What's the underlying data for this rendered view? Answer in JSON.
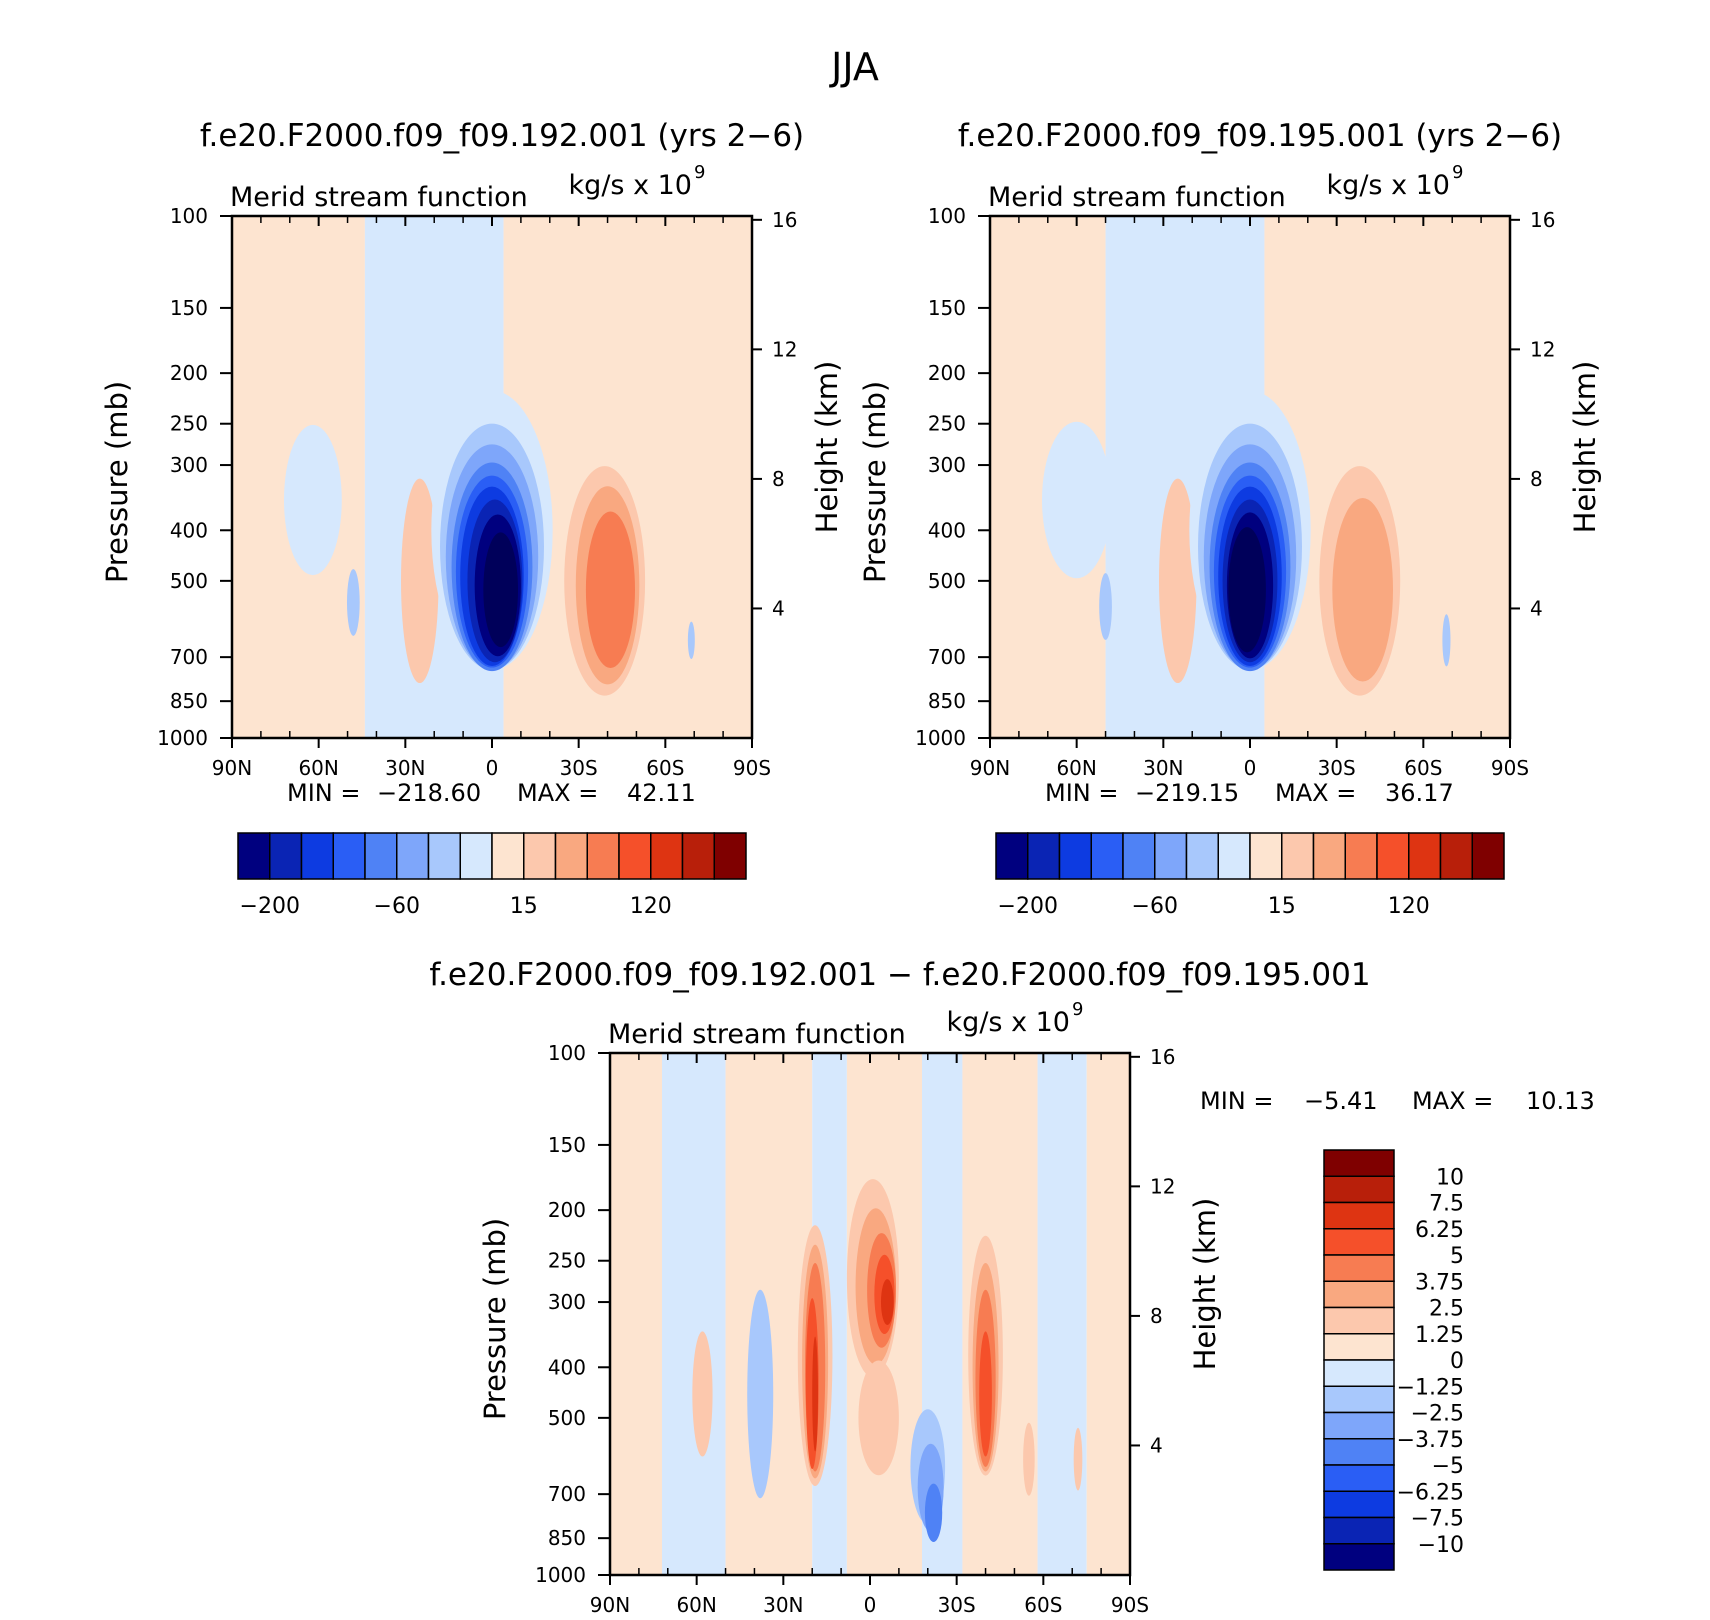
{
  "figure": {
    "title": "JJA"
  },
  "chart_data": [
    {
      "type": "contour",
      "title": "f.e20.F2000.f09_f09.192.001 (yrs 2−6)",
      "left_title": "Merid stream function",
      "right_title": "kg/s x 10",
      "right_title_exp": "9",
      "ylabel": "Pressure (mb)",
      "ylabel_right": "Height (km)",
      "x_ticks": [
        "90N",
        "60N",
        "30N",
        "0",
        "30S",
        "60S",
        "90S"
      ],
      "y_ticks": [
        "100",
        "150",
        "200",
        "250",
        "300",
        "400",
        "500",
        "700",
        "850",
        "1000"
      ],
      "y_right_ticks": [
        "16",
        "12",
        "8",
        "4"
      ],
      "stats": {
        "min_label": "MIN =",
        "min": "−218.60",
        "max_label": "MAX =",
        "max": "42.11"
      },
      "colorbar": {
        "orientation": "horizontal",
        "labels": [
          "−200",
          "−60",
          "15",
          "120"
        ],
        "colors": [
          "#00007f",
          "#0a24b4",
          "#0d3be1",
          "#2a5ef5",
          "#4f82f5",
          "#7ea6fa",
          "#a8c8fc",
          "#d6e8fd",
          "#fde4d0",
          "#fcc8ad",
          "#f9a880",
          "#f77c52",
          "#f5502a",
          "#de3412",
          "#b81f0a",
          "#7f0000"
        ]
      },
      "fields": {
        "stripes": [
          {
            "from": 0,
            "to": 46,
            "level": "pos1"
          },
          {
            "from": 46,
            "to": 94,
            "level": "neg1"
          },
          {
            "from": 94,
            "to": 180,
            "level": "pos1"
          }
        ],
        "blobs": [
          {
            "lat": 62,
            "plev": 350,
            "w": 10,
            "h": 0.72,
            "level": "neg1"
          },
          {
            "lat": 48,
            "plev": 550,
            "w": 2.2,
            "h": 0.32,
            "level": "neg2"
          },
          {
            "lat": 25,
            "plev": 500,
            "w": 6.5,
            "h": 0.98,
            "level": "pos2"
          },
          {
            "lat": 0,
            "plev": 400,
            "w": 21,
            "h": 1.34,
            "level": "neg1"
          },
          {
            "lat": 0,
            "plev": 430,
            "w": 18,
            "h": 1.18,
            "level": "neg2"
          },
          {
            "lat": 0,
            "plev": 450,
            "w": 16,
            "h": 1.08,
            "level": "neg3"
          },
          {
            "lat": 0,
            "plev": 470,
            "w": 14,
            "h": 1.0,
            "level": "neg4"
          },
          {
            "lat": 0,
            "plev": 480,
            "w": 12.5,
            "h": 0.92,
            "level": "neg5"
          },
          {
            "lat": 0,
            "plev": 490,
            "w": 11,
            "h": 0.86,
            "level": "neg6"
          },
          {
            "lat": -1,
            "plev": 500,
            "w": 9.5,
            "h": 0.78,
            "level": "neg7"
          },
          {
            "lat": -2,
            "plev": 510,
            "w": 8,
            "h": 0.68,
            "level": "neg8"
          },
          {
            "lat": -3,
            "plev": 520,
            "w": 6,
            "h": 0.55,
            "level": "neg9"
          },
          {
            "lat": -39,
            "plev": 500,
            "w": 14,
            "h": 1.1,
            "level": "pos2"
          },
          {
            "lat": -40,
            "plev": 510,
            "w": 11,
            "h": 0.95,
            "level": "pos3"
          },
          {
            "lat": -41,
            "plev": 520,
            "w": 8.5,
            "h": 0.75,
            "level": "pos4"
          },
          {
            "lat": -69,
            "plev": 650,
            "w": 1.2,
            "h": 0.18,
            "level": "neg2"
          }
        ]
      }
    },
    {
      "type": "contour",
      "title": "f.e20.F2000.f09_f09.195.001 (yrs 2−6)",
      "left_title": "Merid stream function",
      "right_title": "kg/s x 10",
      "right_title_exp": "9",
      "ylabel": "Pressure (mb)",
      "ylabel_right": "Height (km)",
      "x_ticks": [
        "90N",
        "60N",
        "30N",
        "0",
        "30S",
        "60S",
        "90S"
      ],
      "y_ticks": [
        "100",
        "150",
        "200",
        "250",
        "300",
        "400",
        "500",
        "700",
        "850",
        "1000"
      ],
      "y_right_ticks": [
        "16",
        "12",
        "8",
        "4"
      ],
      "stats": {
        "min_label": "MIN =",
        "min": "−219.15",
        "max_label": "MAX =",
        "max": "36.17"
      },
      "colorbar": {
        "orientation": "horizontal",
        "labels": [
          "−200",
          "−60",
          "15",
          "120"
        ],
        "colors": [
          "#00007f",
          "#0a24b4",
          "#0d3be1",
          "#2a5ef5",
          "#4f82f5",
          "#7ea6fa",
          "#a8c8fc",
          "#d6e8fd",
          "#fde4d0",
          "#fcc8ad",
          "#f9a880",
          "#f77c52",
          "#f5502a",
          "#de3412",
          "#b81f0a",
          "#7f0000"
        ]
      },
      "fields": {
        "stripes": [
          {
            "from": 0,
            "to": 40,
            "level": "pos1"
          },
          {
            "from": 40,
            "to": 95,
            "level": "neg1"
          },
          {
            "from": 95,
            "to": 180,
            "level": "pos1"
          }
        ],
        "blobs": [
          {
            "lat": 60,
            "plev": 350,
            "w": 12,
            "h": 0.75,
            "level": "neg1"
          },
          {
            "lat": 50,
            "plev": 560,
            "w": 2.2,
            "h": 0.32,
            "level": "neg2"
          },
          {
            "lat": 25,
            "plev": 500,
            "w": 6.5,
            "h": 0.98,
            "level": "pos2"
          },
          {
            "lat": 0,
            "plev": 400,
            "w": 21,
            "h": 1.34,
            "level": "neg1"
          },
          {
            "lat": 0,
            "plev": 430,
            "w": 18,
            "h": 1.18,
            "level": "neg2"
          },
          {
            "lat": 0,
            "plev": 450,
            "w": 16,
            "h": 1.08,
            "level": "neg3"
          },
          {
            "lat": 0,
            "plev": 470,
            "w": 14,
            "h": 1.0,
            "level": "neg4"
          },
          {
            "lat": 0,
            "plev": 480,
            "w": 12.5,
            "h": 0.92,
            "level": "neg5"
          },
          {
            "lat": 0,
            "plev": 490,
            "w": 11,
            "h": 0.86,
            "level": "neg6"
          },
          {
            "lat": 0,
            "plev": 500,
            "w": 9.5,
            "h": 0.78,
            "level": "neg7"
          },
          {
            "lat": 0,
            "plev": 510,
            "w": 8,
            "h": 0.7,
            "level": "neg8"
          },
          {
            "lat": 1,
            "plev": 520,
            "w": 6.5,
            "h": 0.6,
            "level": "neg9"
          },
          {
            "lat": -38,
            "plev": 500,
            "w": 14,
            "h": 1.1,
            "level": "pos2"
          },
          {
            "lat": -39,
            "plev": 520,
            "w": 10.5,
            "h": 0.88,
            "level": "pos3"
          },
          {
            "lat": -68,
            "plev": 650,
            "w": 1.4,
            "h": 0.25,
            "level": "neg2"
          }
        ]
      }
    },
    {
      "type": "contour",
      "title": "f.e20.F2000.f09_f09.192.001 − f.e20.F2000.f09_f09.195.001",
      "left_title": "Merid stream function",
      "right_title": "kg/s x 10",
      "right_title_exp": "9",
      "ylabel": "Pressure (mb)",
      "ylabel_right": "Height (km)",
      "x_ticks": [
        "90N",
        "60N",
        "30N",
        "0",
        "30S",
        "60S",
        "90S"
      ],
      "y_ticks": [
        "100",
        "150",
        "200",
        "250",
        "300",
        "400",
        "500",
        "700",
        "850",
        "1000"
      ],
      "y_right_ticks": [
        "16",
        "12",
        "8",
        "4"
      ],
      "stats": {
        "min_label": "MIN =",
        "min": "−5.41",
        "max_label": "MAX =",
        "max": "10.13"
      },
      "colorbar": {
        "orientation": "vertical",
        "labels": [
          "10",
          "7.5",
          "6.25",
          "5",
          "3.75",
          "2.5",
          "1.25",
          "0",
          "−1.25",
          "−2.5",
          "−3.75",
          "−5",
          "−6.25",
          "−7.5",
          "−10"
        ],
        "colors": [
          "#00007f",
          "#0a24b4",
          "#0d3be1",
          "#2a5ef5",
          "#4f82f5",
          "#7ea6fa",
          "#a8c8fc",
          "#d6e8fd",
          "#fde4d0",
          "#fcc8ad",
          "#f9a880",
          "#f77c52",
          "#f5502a",
          "#de3412",
          "#b81f0a",
          "#7f0000"
        ]
      },
      "fields": {
        "stripes": [
          {
            "from": 0,
            "to": 18,
            "level": "pos1"
          },
          {
            "from": 18,
            "to": 40,
            "level": "neg1"
          },
          {
            "from": 40,
            "to": 70,
            "level": "pos1"
          },
          {
            "from": 70,
            "to": 82,
            "level": "neg1"
          },
          {
            "from": 82,
            "to": 108,
            "level": "pos1"
          },
          {
            "from": 108,
            "to": 122,
            "level": "neg1"
          },
          {
            "from": 122,
            "to": 148,
            "level": "pos1"
          },
          {
            "from": 148,
            "to": 165,
            "level": "neg1"
          },
          {
            "from": 165,
            "to": 180,
            "level": "pos1"
          }
        ],
        "blobs": [
          {
            "lat": 58,
            "plev": 450,
            "w": 3.5,
            "h": 0.6,
            "level": "pos2"
          },
          {
            "lat": 38,
            "plev": 450,
            "w": 4.5,
            "h": 1.0,
            "level": "neg2"
          },
          {
            "lat": 19,
            "plev": 380,
            "w": 6,
            "h": 1.25,
            "level": "pos2"
          },
          {
            "lat": 19,
            "plev": 390,
            "w": 4.5,
            "h": 1.12,
            "level": "pos3"
          },
          {
            "lat": 19,
            "plev": 400,
            "w": 3.5,
            "h": 1.0,
            "level": "pos4"
          },
          {
            "lat": 20,
            "plev": 430,
            "w": 2.2,
            "h": 0.82,
            "level": "pos5"
          },
          {
            "lat": 19,
            "plev": 450,
            "w": 1.0,
            "h": 0.55,
            "level": "pos6"
          },
          {
            "lat": -1,
            "plev": 270,
            "w": 9,
            "h": 0.95,
            "level": "pos2"
          },
          {
            "lat": -2,
            "plev": 280,
            "w": 7,
            "h": 0.75,
            "level": "pos3"
          },
          {
            "lat": -4,
            "plev": 285,
            "w": 5,
            "h": 0.55,
            "level": "pos4"
          },
          {
            "lat": -5,
            "plev": 290,
            "w": 3.5,
            "h": 0.38,
            "level": "pos5"
          },
          {
            "lat": -6,
            "plev": 300,
            "w": 2.2,
            "h": 0.22,
            "level": "pos6"
          },
          {
            "lat": -3,
            "plev": 500,
            "w": 7,
            "h": 0.55,
            "level": "pos2"
          },
          {
            "lat": -20,
            "plev": 620,
            "w": 6,
            "h": 0.55,
            "level": "neg2"
          },
          {
            "lat": -21,
            "plev": 680,
            "w": 4.5,
            "h": 0.42,
            "level": "neg3"
          },
          {
            "lat": -22,
            "plev": 760,
            "w": 3,
            "h": 0.28,
            "level": "neg4"
          },
          {
            "lat": -40,
            "plev": 380,
            "w": 6,
            "h": 1.15,
            "level": "pos2"
          },
          {
            "lat": -40,
            "plev": 400,
            "w": 4.5,
            "h": 1.0,
            "level": "pos3"
          },
          {
            "lat": -40,
            "plev": 420,
            "w": 3.5,
            "h": 0.85,
            "level": "pos4"
          },
          {
            "lat": -40,
            "plev": 450,
            "w": 2.2,
            "h": 0.6,
            "level": "pos5"
          },
          {
            "lat": -55,
            "plev": 600,
            "w": 2,
            "h": 0.35,
            "level": "pos2"
          },
          {
            "lat": -72,
            "plev": 600,
            "w": 1.5,
            "h": 0.3,
            "level": "pos2"
          }
        ]
      }
    }
  ]
}
